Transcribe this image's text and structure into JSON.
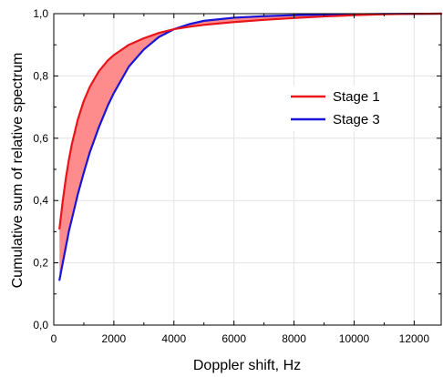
{
  "chart_data": {
    "type": "line",
    "xlabel": "Doppler shift, Hz",
    "ylabel": "Cumulative sum of relative spectrum",
    "xlim": [
      0,
      12900
    ],
    "ylim": [
      0,
      1.0
    ],
    "x_ticks": [
      0,
      2000,
      4000,
      6000,
      8000,
      10000,
      12000
    ],
    "x_tick_labels": [
      "0",
      "2000",
      "4000",
      "6000",
      "8000",
      "10000",
      "12000"
    ],
    "y_ticks": [
      0,
      0.2,
      0.4,
      0.6,
      0.8,
      1.0
    ],
    "y_tick_labels": [
      "0,0",
      "0,2",
      "0,4",
      "0,6",
      "0,8",
      "1,0"
    ],
    "grid": true,
    "legend_position": "center-right",
    "fill_between": {
      "series": [
        "Stage 1",
        "Stage 3"
      ],
      "color": "#ff8c8c"
    },
    "series": [
      {
        "name": "Stage 1",
        "color": "#e8141a",
        "x": [
          190,
          300,
          400,
          500,
          600,
          800,
          1000,
          1200,
          1500,
          1800,
          2000,
          2500,
          3000,
          3500,
          4000,
          4500,
          5000,
          6000,
          7000,
          8000,
          9000,
          10000,
          11000,
          12000,
          12900
        ],
        "y": [
          0.31,
          0.4,
          0.47,
          0.53,
          0.58,
          0.66,
          0.72,
          0.765,
          0.815,
          0.85,
          0.867,
          0.9,
          0.921,
          0.938,
          0.95,
          0.958,
          0.964,
          0.973,
          0.98,
          0.986,
          0.991,
          0.995,
          0.998,
          0.9995,
          1.0
        ]
      },
      {
        "name": "Stage 3",
        "color": "#1a14d8",
        "x": [
          190,
          300,
          400,
          500,
          600,
          800,
          1000,
          1200,
          1500,
          1800,
          2000,
          2500,
          3000,
          3500,
          4000,
          4500,
          5000,
          6000,
          7000,
          8000,
          9000,
          10000,
          11000,
          12000,
          12900
        ],
        "y": [
          0.145,
          0.2,
          0.25,
          0.3,
          0.34,
          0.42,
          0.49,
          0.555,
          0.635,
          0.705,
          0.745,
          0.83,
          0.885,
          0.925,
          0.95,
          0.966,
          0.977,
          0.987,
          0.992,
          0.995,
          0.997,
          0.998,
          0.999,
          0.9995,
          1.0
        ]
      }
    ]
  }
}
